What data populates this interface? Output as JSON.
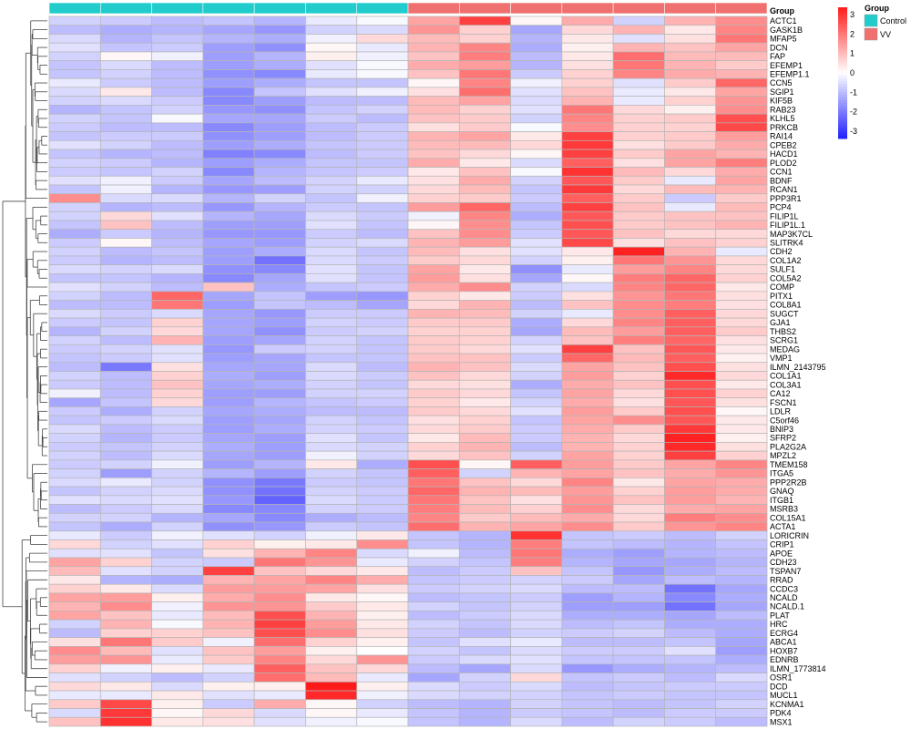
{
  "chart_data": {
    "type": "heatmap",
    "annotation_title": "Group",
    "legend_title": "Group",
    "groups": [
      {
        "name": "Control",
        "color": "#22cccc"
      },
      {
        "name": "VV",
        "color": "#f07070"
      }
    ],
    "column_groups": [
      "Control",
      "Control",
      "Control",
      "Control",
      "Control",
      "Control",
      "Control",
      "VV",
      "VV",
      "VV",
      "VV",
      "VV",
      "VV",
      "VV"
    ],
    "color_scale": {
      "low": "#2020ff",
      "mid": "#ffffff",
      "high": "#ff1a1a",
      "min": -3,
      "max": 3,
      "ticks": [
        "3",
        "2",
        "1",
        "0",
        "-1",
        "-2",
        "-3"
      ]
    },
    "row_labels": [
      "ACTC1",
      "GASK1B",
      "MFAP5",
      "DCN",
      "FAP",
      "EFEMP1",
      "EFEMP1.1",
      "CCN5",
      "SGIP1",
      "KIF5B",
      "RAB23",
      "KLHL5",
      "PRKCB",
      "RAI14",
      "CPEB2",
      "HACD1",
      "PLOD2",
      "CCN1",
      "BDNF",
      "RCAN1",
      "PPP3R1",
      "PCP4",
      "FILIP1L",
      "FILIP1L.1",
      "MAP3K7CL",
      "SLITRK4",
      "CDH2",
      "COL1A2",
      "SULF1",
      "COL5A2",
      "COMP",
      "PITX1",
      "COL8A1",
      "SUGCT",
      "GJA1",
      "THBS2",
      "SCRG1",
      "MEDAG",
      "VMP1",
      "ILMN_2143795",
      "COL1A1",
      "COL3A1",
      "CA12",
      "FSCN1",
      "LDLR",
      "C5orf46",
      "BNIP3",
      "SFRP2",
      "PLA2G2A",
      "MPZL2",
      "TMEM158",
      "ITGA5",
      "PPP2R2B",
      "GNAQ",
      "ITGB1",
      "MSRB3",
      "COL15A1",
      "ACTA1",
      "LORICRIN",
      "CRIP1",
      "APOE",
      "CDH23",
      "TSPAN7",
      "RRAD",
      "CCDC3",
      "NCALD",
      "NCALD.1",
      "PLAT",
      "HRC",
      "ECRG4",
      "ABCA1",
      "HOXB7",
      "EDNRB",
      "ILMN_1773814",
      "OSR1",
      "DCD",
      "MUCL1",
      "KCNMA1",
      "PDK4",
      "MSX1"
    ],
    "values": [
      [
        -0.6,
        -0.7,
        -0.9,
        -0.8,
        -1.0,
        -0.3,
        -0.1,
        1.2,
        2.5,
        0.1,
        1.1,
        -0.6,
        1.0,
        1.5
      ],
      [
        -0.9,
        -1.1,
        -1.0,
        -1.2,
        -1.4,
        -0.6,
        -0.5,
        1.4,
        0.6,
        -1.2,
        0.5,
        1.0,
        0.3,
        1.6
      ],
      [
        -0.5,
        -1.0,
        -0.8,
        -1.0,
        -1.1,
        -0.2,
        0.5,
        0.9,
        0.6,
        -1.0,
        0.3,
        -0.4,
        0.4,
        1.8
      ],
      [
        -0.4,
        -0.8,
        -0.7,
        -1.3,
        -1.5,
        0.1,
        -0.3,
        1.0,
        1.6,
        -1.1,
        0.2,
        1.0,
        0.8,
        1.2
      ],
      [
        -0.6,
        0.1,
        -0.2,
        -1.3,
        -1.0,
        0.2,
        -0.2,
        0.8,
        1.7,
        -0.9,
        0.3,
        1.9,
        0.9,
        0.9
      ],
      [
        -0.8,
        -0.5,
        -0.9,
        -1.3,
        -1.1,
        -0.4,
        -0.1,
        1.1,
        1.3,
        -1.0,
        0.4,
        1.8,
        1.0,
        0.7
      ],
      [
        -0.8,
        -0.6,
        -0.9,
        -1.5,
        -1.6,
        -0.3,
        -0.1,
        0.8,
        1.8,
        -0.7,
        0.6,
        1.6,
        1.1,
        1.0
      ],
      [
        -0.3,
        -0.7,
        -0.9,
        -1.3,
        -1.1,
        -0.8,
        -0.8,
        0.1,
        1.6,
        -0.2,
        0.6,
        -0.4,
        0.7,
        2.0
      ],
      [
        -0.5,
        0.3,
        -0.9,
        -1.6,
        -0.8,
        -0.4,
        -0.2,
        0.4,
        1.9,
        -0.4,
        0.8,
        -0.3,
        0.3,
        1.2
      ],
      [
        -0.6,
        -0.5,
        -0.7,
        -1.6,
        -1.3,
        -0.9,
        -0.9,
        0.9,
        1.2,
        -0.5,
        1.0,
        -0.3,
        0.6,
        1.4
      ],
      [
        -1.0,
        -0.8,
        -0.6,
        -1.4,
        -1.5,
        -0.8,
        -0.6,
        0.9,
        0.6,
        -0.4,
        1.8,
        0.5,
        0.2,
        1.5
      ],
      [
        -0.6,
        -0.8,
        -0.1,
        -1.2,
        -1.2,
        -0.7,
        -0.9,
        0.8,
        0.7,
        -0.6,
        1.6,
        0.6,
        0.7,
        2.3
      ],
      [
        -0.7,
        -0.9,
        -0.9,
        -1.6,
        -1.3,
        -0.9,
        -0.7,
        0.4,
        0.7,
        -0.1,
        1.5,
        0.6,
        0.6,
        2.4
      ],
      [
        -0.8,
        -0.7,
        -0.7,
        -1.5,
        -1.3,
        -0.9,
        -0.7,
        1.0,
        1.2,
        0.3,
        2.5,
        0.6,
        0.7,
        1.3
      ],
      [
        -0.4,
        -0.6,
        -0.9,
        -1.3,
        -1.1,
        -0.8,
        -0.7,
        0.9,
        0.9,
        0.5,
        2.6,
        0.4,
        0.7,
        1.1
      ],
      [
        -0.8,
        -1.0,
        -0.9,
        -1.7,
        -1.6,
        -0.9,
        -0.7,
        0.8,
        0.5,
        0.1,
        2.5,
        0.7,
        1.2,
        1.0
      ],
      [
        -0.6,
        -0.7,
        -1.0,
        -1.3,
        -1.1,
        -0.8,
        -0.8,
        1.1,
        0.3,
        -0.5,
        2.1,
        0.4,
        1.2,
        1.7
      ],
      [
        -0.7,
        -0.8,
        -0.6,
        -1.6,
        -1.0,
        -0.8,
        -0.7,
        0.3,
        0.8,
        -0.1,
        2.7,
        0.9,
        0.5,
        1.1
      ],
      [
        -0.4,
        -0.2,
        -0.7,
        -1.2,
        -0.9,
        -0.6,
        -0.3,
        0.4,
        1.1,
        -0.6,
        2.2,
        0.7,
        -0.3,
        1.2
      ],
      [
        -0.8,
        -0.2,
        -1.0,
        -1.4,
        -1.3,
        -0.6,
        -0.6,
        0.5,
        0.9,
        -0.8,
        2.6,
        0.5,
        0.9,
        1.0
      ],
      [
        1.5,
        -0.5,
        -0.5,
        -1.0,
        -0.6,
        -0.8,
        -0.2,
        0.6,
        0.7,
        -0.7,
        2.1,
        0.7,
        -0.7,
        0.7
      ],
      [
        -0.6,
        -1.0,
        -0.9,
        -1.4,
        -1.0,
        -0.7,
        -0.8,
        1.3,
        2.0,
        -0.9,
        2.5,
        0.8,
        -0.3,
        0.9
      ],
      [
        -0.6,
        0.5,
        -0.4,
        -1.0,
        -1.2,
        -0.5,
        -0.7,
        -0.2,
        1.6,
        -1.1,
        2.2,
        0.7,
        0.8,
        0.8
      ],
      [
        -0.8,
        0.8,
        -0.9,
        -1.3,
        -1.3,
        -0.4,
        -0.8,
        0.1,
        1.5,
        -0.8,
        2.3,
        0.7,
        0.8,
        1.0
      ],
      [
        -1.1,
        -0.7,
        -1.0,
        -1.4,
        -1.4,
        -0.7,
        -0.9,
        0.8,
        1.5,
        -0.7,
        2.2,
        0.8,
        0.5,
        0.5
      ],
      [
        -0.7,
        0.1,
        -0.9,
        -1.2,
        -1.3,
        -0.6,
        -0.5,
        1.0,
        1.3,
        -0.4,
        2.4,
        0.4,
        0.8,
        0.6
      ],
      [
        -0.6,
        -0.9,
        -0.8,
        -1.3,
        -1.1,
        -0.5,
        -0.8,
        0.9,
        0.4,
        -0.4,
        0.3,
        2.9,
        1.0,
        -0.3
      ],
      [
        -0.7,
        -1.0,
        -0.9,
        -1.3,
        -1.9,
        -0.5,
        -0.7,
        0.7,
        0.5,
        -0.6,
        0.2,
        1.8,
        1.4,
        0.5
      ],
      [
        -0.5,
        -0.6,
        -0.5,
        -1.5,
        -1.6,
        -0.4,
        -0.8,
        1.2,
        0.3,
        -1.5,
        -0.3,
        1.3,
        1.6,
        0.5
      ],
      [
        -0.8,
        -0.8,
        -1.0,
        -1.6,
        -1.2,
        -0.4,
        -0.8,
        1.3,
        0.4,
        -1.2,
        0.1,
        1.7,
        2.0,
        0.6
      ],
      [
        -0.4,
        -0.6,
        -0.9,
        0.8,
        -1.1,
        -0.8,
        -0.7,
        1.1,
        1.5,
        -0.6,
        -0.5,
        1.6,
        2.0,
        0.3
      ],
      [
        -0.6,
        -0.9,
        2.0,
        -1.2,
        -0.8,
        -1.3,
        -1.4,
        0.6,
        0.3,
        -0.7,
        0.4,
        1.4,
        1.8,
        0.4
      ],
      [
        -0.9,
        -0.9,
        1.8,
        -1.3,
        -0.8,
        -0.9,
        -1.2,
        0.5,
        1.0,
        -0.9,
        0.8,
        1.5,
        1.7,
        0.4
      ],
      [
        -0.5,
        -0.7,
        -0.5,
        -1.2,
        -1.4,
        -0.7,
        -0.7,
        1.0,
        0.9,
        -0.6,
        -0.3,
        1.5,
        2.1,
        0.5
      ],
      [
        -0.7,
        -0.8,
        0.6,
        -1.2,
        -1.3,
        -0.6,
        -0.7,
        0.7,
        0.7,
        -1.1,
        0.5,
        1.6,
        2.1,
        0.5
      ],
      [
        -1.0,
        -0.6,
        0.5,
        -1.2,
        -1.5,
        -0.7,
        -0.6,
        0.6,
        0.6,
        -1.2,
        0.9,
        1.3,
        2.1,
        0.7
      ],
      [
        -0.6,
        -0.9,
        1.0,
        -1.3,
        -1.2,
        -0.6,
        -0.8,
        0.7,
        0.6,
        -0.6,
        0.8,
        1.7,
        2.0,
        0.4
      ],
      [
        -0.7,
        -0.6,
        -0.4,
        -1.4,
        -0.7,
        -0.6,
        -0.8,
        0.7,
        0.5,
        -0.4,
        2.5,
        0.8,
        2.2,
        0.3
      ],
      [
        -0.8,
        -0.7,
        -0.4,
        -1.3,
        -1.2,
        -0.8,
        -0.8,
        0.8,
        0.8,
        -0.7,
        2.0,
        0.9,
        2.1,
        0.2
      ],
      [
        -0.9,
        -1.8,
        0.4,
        -1.2,
        -1.2,
        -0.5,
        -0.9,
        1.0,
        0.8,
        -0.5,
        1.2,
        0.8,
        2.3,
        0.4
      ],
      [
        -0.6,
        -0.9,
        0.6,
        -1.1,
        -1.3,
        -0.5,
        -0.7,
        0.8,
        0.5,
        -0.6,
        1.3,
        0.6,
        2.8,
        0.5
      ],
      [
        -0.7,
        -0.9,
        0.8,
        -1.2,
        -1.1,
        -0.6,
        -0.8,
        0.5,
        0.4,
        -1.1,
        1.1,
        0.8,
        2.3,
        0.3
      ],
      [
        -0.2,
        -0.9,
        0.6,
        -1.3,
        -1.3,
        -0.6,
        -0.6,
        0.7,
        0.5,
        -0.8,
        1.2,
        0.5,
        2.3,
        0.6
      ],
      [
        -1.2,
        -0.8,
        0.5,
        -1.3,
        -1.0,
        -0.8,
        -0.7,
        0.6,
        0.3,
        -0.6,
        1.1,
        0.4,
        2.2,
        0.4
      ],
      [
        -0.7,
        -1.1,
        -0.6,
        -1.2,
        -1.1,
        -0.9,
        -0.9,
        0.7,
        0.5,
        -0.4,
        1.3,
        0.7,
        2.3,
        0.1
      ],
      [
        -0.8,
        -0.7,
        -0.5,
        -1.3,
        -1.2,
        -0.6,
        -0.8,
        0.4,
        0.6,
        -0.8,
        1.2,
        1.5,
        2.2,
        0.3
      ],
      [
        -0.5,
        -0.9,
        -0.7,
        -1.3,
        -1.1,
        -0.6,
        -0.7,
        0.5,
        0.7,
        -0.7,
        1.1,
        0.7,
        2.6,
        0.3
      ],
      [
        -0.6,
        -1.0,
        -0.7,
        -1.2,
        -1.3,
        -0.4,
        -0.8,
        0.3,
        0.9,
        -0.7,
        1.0,
        0.5,
        2.9,
        0.2
      ],
      [
        -0.7,
        -0.8,
        -0.6,
        -1.1,
        -1.3,
        -0.5,
        -0.6,
        0.6,
        1.0,
        -0.9,
        1.0,
        0.6,
        2.8,
        0.4
      ],
      [
        -0.6,
        -0.9,
        -0.5,
        -1.2,
        -1.3,
        -0.2,
        -0.6,
        0.5,
        0.8,
        -0.6,
        1.2,
        0.6,
        2.5,
        0.6
      ],
      [
        -0.7,
        -0.6,
        -0.2,
        -1.3,
        -1.0,
        0.3,
        -1.1,
        2.3,
        0.1,
        2.1,
        1.3,
        0.7,
        1.2,
        1.6
      ],
      [
        -0.6,
        -1.3,
        -0.6,
        -1.0,
        -1.3,
        -0.6,
        -0.8,
        2.1,
        -0.6,
        1.0,
        1.2,
        0.8,
        1.1,
        1.4
      ],
      [
        -0.5,
        -0.3,
        -0.6,
        -1.5,
        -1.8,
        -0.7,
        -0.8,
        1.8,
        0.8,
        0.5,
        1.6,
        0.3,
        1.2,
        1.1
      ],
      [
        -0.8,
        -0.6,
        -0.5,
        -1.5,
        -1.9,
        -0.6,
        -0.7,
        2.0,
        1.0,
        0.9,
        1.3,
        0.6,
        1.3,
        1.1
      ],
      [
        -0.4,
        -0.5,
        -0.4,
        -1.4,
        -2.1,
        -0.5,
        -0.7,
        1.8,
        0.8,
        0.4,
        1.4,
        0.8,
        1.3,
        1.0
      ],
      [
        -0.9,
        -0.7,
        -0.5,
        -1.6,
        -1.6,
        -0.6,
        -0.7,
        1.7,
        0.9,
        0.6,
        1.5,
        0.5,
        1.1,
        1.2
      ],
      [
        -0.6,
        -0.6,
        -1.0,
        -1.2,
        -1.6,
        -1.1,
        -0.9,
        1.6,
        0.7,
        0.9,
        1.1,
        0.5,
        1.7,
        1.5
      ],
      [
        -0.8,
        -1.1,
        -0.6,
        -1.5,
        -1.4,
        -0.7,
        -0.8,
        1.9,
        1.0,
        1.2,
        1.5,
        0.7,
        1.4,
        1.6
      ],
      [
        -0.3,
        -0.7,
        -0.2,
        -0.4,
        -0.6,
        -0.2,
        0.3,
        -0.8,
        -1.0,
        2.7,
        -0.8,
        -0.7,
        -0.9,
        -0.6
      ],
      [
        0.5,
        -0.6,
        -0.4,
        0.6,
        0.2,
        0.3,
        1.5,
        -0.8,
        -1.0,
        1.7,
        -0.8,
        -0.9,
        -1.0,
        -0.8
      ],
      [
        -0.4,
        -0.4,
        -0.8,
        0.4,
        1.0,
        1.6,
        -0.5,
        -0.2,
        -0.9,
        1.8,
        -1.1,
        -1.3,
        -1.0,
        -0.9
      ],
      [
        1.2,
        0.6,
        -0.6,
        -0.7,
        1.8,
        1.4,
        -0.3,
        -0.6,
        -0.8,
        1.7,
        -1.0,
        -1.2,
        -1.2,
        -1.0
      ],
      [
        0.9,
        -0.4,
        -0.6,
        2.5,
        0.8,
        0.5,
        0.3,
        -0.9,
        -0.7,
        0.8,
        -0.8,
        -1.4,
        -1.1,
        -0.9
      ],
      [
        0.3,
        -1.0,
        -1.1,
        1.0,
        1.2,
        1.6,
        1.1,
        -0.8,
        -0.7,
        -0.6,
        -0.7,
        -1.2,
        -0.9,
        -1.0
      ],
      [
        0.6,
        0.3,
        -0.5,
        1.3,
        1.3,
        1.2,
        0.4,
        -0.7,
        -0.6,
        -0.5,
        -0.9,
        -0.9,
        -1.9,
        -1.2
      ],
      [
        1.2,
        1.3,
        0.2,
        1.1,
        1.5,
        0.3,
        0.1,
        -0.9,
        -0.8,
        -0.7,
        -1.3,
        -1.0,
        -1.6,
        -1.1
      ],
      [
        1.0,
        1.5,
        -0.2,
        1.4,
        1.4,
        0.7,
        0.3,
        -0.6,
        -0.8,
        -0.6,
        -1.3,
        -1.3,
        -1.9,
        -1.2
      ],
      [
        1.2,
        0.8,
        -0.3,
        0.9,
        2.3,
        1.0,
        0.2,
        -0.9,
        -0.7,
        -0.5,
        -1.1,
        -1.1,
        -1.2,
        -0.9
      ],
      [
        -0.6,
        1.0,
        -0.1,
        1.0,
        2.5,
        1.3,
        0.3,
        -0.6,
        -0.8,
        -0.5,
        -0.9,
        -0.8,
        -1.1,
        -1.1
      ],
      [
        -0.9,
        0.6,
        0.6,
        0.8,
        2.3,
        1.5,
        0.4,
        -0.7,
        -0.9,
        -0.6,
        -0.7,
        -0.6,
        -0.9,
        -1.1
      ],
      [
        0.4,
        1.8,
        0.7,
        -0.2,
        1.9,
        0.6,
        0.2,
        -0.8,
        -0.4,
        -0.3,
        -0.9,
        -0.9,
        -0.8,
        -1.2
      ],
      [
        1.5,
        0.9,
        -0.4,
        0.8,
        1.3,
        0.2,
        0.0,
        -0.6,
        -0.8,
        -0.5,
        -0.7,
        -0.7,
        -0.4,
        -1.3
      ],
      [
        1.3,
        1.4,
        -0.3,
        0.7,
        1.6,
        0.5,
        1.4,
        -0.7,
        -0.5,
        -0.4,
        -0.8,
        -0.8,
        -0.8,
        -1.1
      ],
      [
        0.6,
        -0.2,
        0.2,
        -0.3,
        2.1,
        0.8,
        0.5,
        -0.9,
        -1.2,
        -0.5,
        -1.4,
        -1.1,
        -1.0,
        -0.9
      ],
      [
        -0.4,
        -0.6,
        -0.9,
        -0.6,
        1.9,
        0.9,
        -0.3,
        -1.2,
        -0.6,
        0.5,
        -0.8,
        -0.7,
        -0.9,
        -0.5
      ],
      [
        0.5,
        0.3,
        -0.5,
        0.2,
        0.2,
        3.0,
        0.2,
        -0.5,
        -0.7,
        -0.5,
        -0.9,
        -0.8,
        -0.7,
        -0.7
      ],
      [
        -0.3,
        -0.3,
        0.3,
        -0.4,
        -0.3,
        2.8,
        -0.2,
        -0.5,
        -0.6,
        -0.6,
        -0.8,
        -0.7,
        -0.8,
        -0.8
      ],
      [
        0.7,
        2.4,
        0.2,
        -0.7,
        1.1,
        0.1,
        -0.6,
        -0.9,
        -1.0,
        -0.6,
        -0.8,
        -0.9,
        -0.8,
        -0.6
      ],
      [
        -0.5,
        2.6,
        0.1,
        0.5,
        -0.5,
        0.1,
        -0.3,
        -0.8,
        -1.0,
        -0.7,
        -0.8,
        -0.9,
        -0.7,
        -0.7
      ],
      [
        0.8,
        2.7,
        0.3,
        0.4,
        -0.4,
        -0.2,
        -0.1,
        -0.8,
        -1.0,
        -0.5,
        -0.9,
        -0.6,
        -0.7,
        -0.9
      ]
    ]
  }
}
